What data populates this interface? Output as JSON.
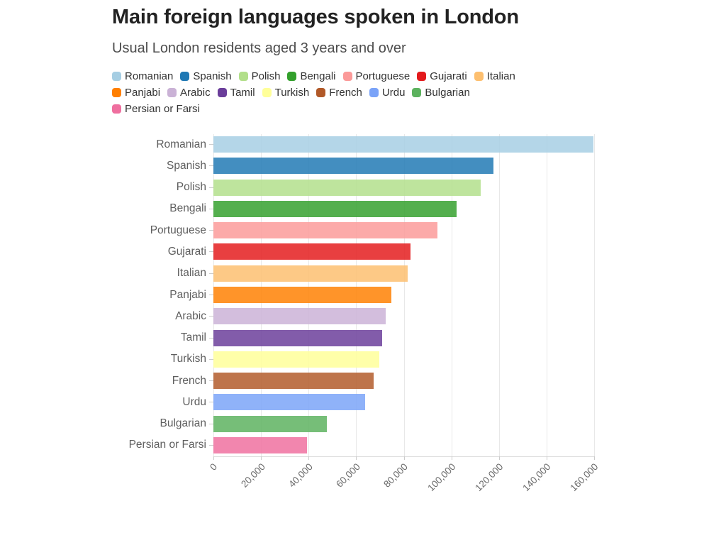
{
  "header": {
    "title": "Main foreign languages spoken in London",
    "subtitle": "Usual London residents aged 3 years and over"
  },
  "chart_data": {
    "type": "bar",
    "orientation": "horizontal",
    "title": "Main foreign languages spoken in London",
    "subtitle": "Usual London residents aged 3 years and over",
    "xlabel": "",
    "ylabel": "",
    "xlim": [
      0,
      160000
    ],
    "grid": "vertical-only",
    "legend_position": "top",
    "x_tick_labels": [
      "0",
      "20,000",
      "40,000",
      "60,000",
      "80,000",
      "100,000",
      "120,000",
      "140,000",
      "160,000"
    ],
    "categories": [
      "Romanian",
      "Spanish",
      "Polish",
      "Bengali",
      "Portuguese",
      "Gujarati",
      "Italian",
      "Panjabi",
      "Arabic",
      "Tamil",
      "Turkish",
      "French",
      "Urdu",
      "Bulgarian",
      "Persian or Farsi"
    ],
    "values": [
      159800,
      117800,
      112300,
      102100,
      94300,
      82900,
      81700,
      74700,
      72300,
      70900,
      69700,
      67300,
      63700,
      47700,
      39200
    ],
    "bars": [
      {
        "label": "Romanian",
        "value": 159800,
        "color": "#a6cee3"
      },
      {
        "label": "Spanish",
        "value": 117800,
        "color": "#1f78b4"
      },
      {
        "label": "Polish",
        "value": 112300,
        "color": "#b2df8a"
      },
      {
        "label": "Bengali",
        "value": 102100,
        "color": "#33a02c"
      },
      {
        "label": "Portuguese",
        "value": 94300,
        "color": "#fb9a99"
      },
      {
        "label": "Gujarati",
        "value": 82900,
        "color": "#e31a1c"
      },
      {
        "label": "Italian",
        "value": 81700,
        "color": "#fdbf6f"
      },
      {
        "label": "Panjabi",
        "value": 74700,
        "color": "#ff7f00"
      },
      {
        "label": "Arabic",
        "value": 72300,
        "color": "#cab2d6"
      },
      {
        "label": "Tamil",
        "value": 70900,
        "color": "#6a3d9a"
      },
      {
        "label": "Turkish",
        "value": 69700,
        "color": "#ffff99"
      },
      {
        "label": "French",
        "value": 67300,
        "color": "#b15928"
      },
      {
        "label": "Urdu",
        "value": 63700,
        "color": "#7aa3f8"
      },
      {
        "label": "Bulgarian",
        "value": 47700,
        "color": "#5cb25e"
      },
      {
        "label": "Persian or Farsi",
        "value": 39200,
        "color": "#ef6f9f"
      }
    ]
  }
}
